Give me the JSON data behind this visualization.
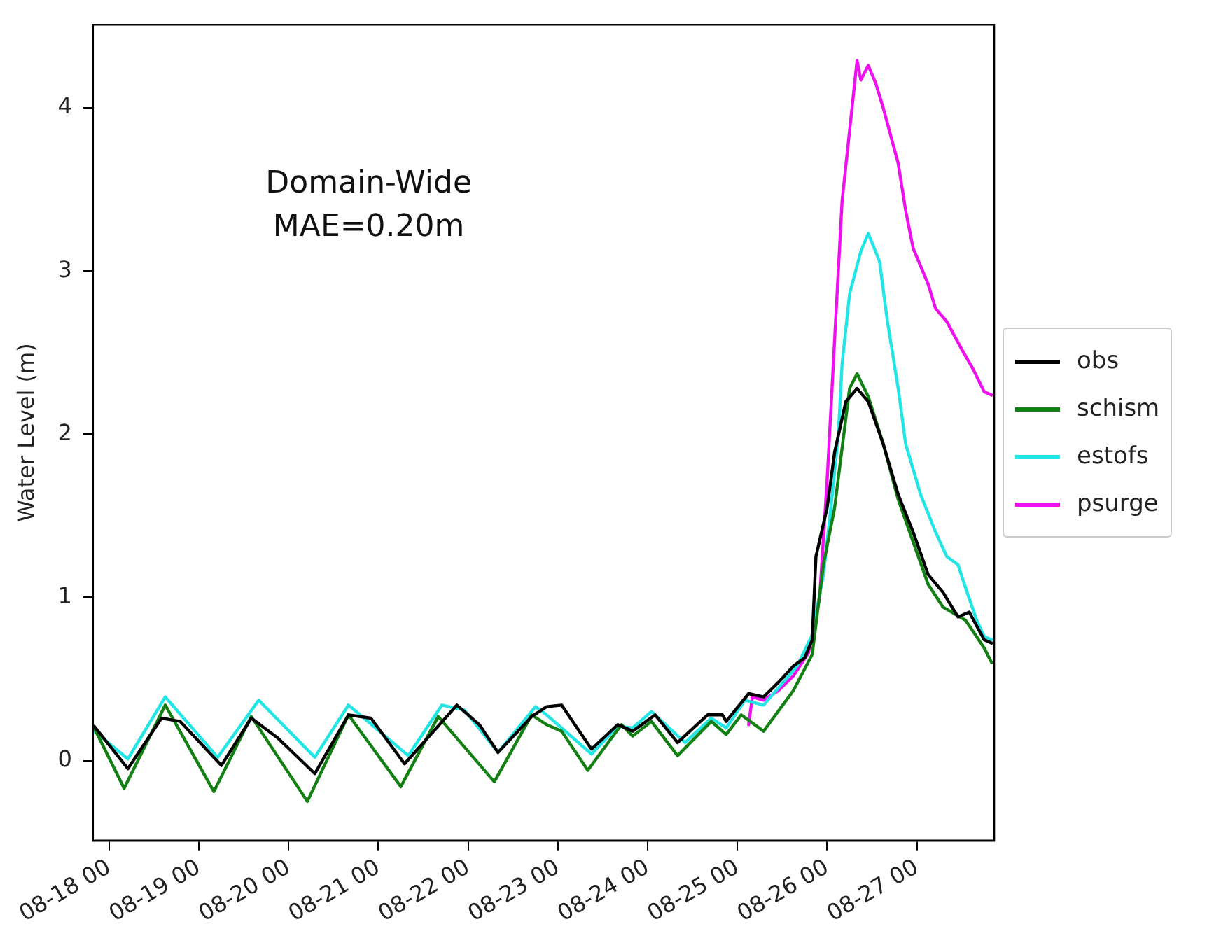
{
  "chart_data": {
    "type": "line",
    "ylabel": "Water Level (m)",
    "annotations": [
      "Domain-Wide\nMAE=0.20m"
    ],
    "xlim": [
      "--08-17T19:40",
      "--08-27T20:40"
    ],
    "xticks": [
      {
        "value": "--08-18T00:00",
        "label": "08-18 00"
      },
      {
        "value": "--08-19T00:00",
        "label": "08-19 00"
      },
      {
        "value": "--08-20T00:00",
        "label": "08-20 00"
      },
      {
        "value": "--08-21T00:00",
        "label": "08-21 00"
      },
      {
        "value": "--08-22T00:00",
        "label": "08-22 00"
      },
      {
        "value": "--08-23T00:00",
        "label": "08-23 00"
      },
      {
        "value": "--08-24T00:00",
        "label": "08-24 00"
      },
      {
        "value": "--08-25T00:00",
        "label": "08-25 00"
      },
      {
        "value": "--08-26T00:00",
        "label": "08-26 00"
      },
      {
        "value": "--08-27T00:00",
        "label": "08-27 00"
      }
    ],
    "ylim": [
      -0.49,
      4.51
    ],
    "yticks": [
      0,
      1,
      2,
      3,
      4
    ],
    "grid": false,
    "legend": "right",
    "marker": "none",
    "line_style": "solid",
    "series": [
      {
        "name": "obs",
        "color": "#000000",
        "x": [
          "--08-17T20:00",
          "--08-18T05:00",
          "--08-18T14:00",
          "--08-18T19:00",
          "--08-19T06:00",
          "--08-19T14:00",
          "--08-19T21:00",
          "--08-20T07:00",
          "--08-20T16:00",
          "--08-20T22:00",
          "--08-21T07:00",
          "--08-21T21:00",
          "--08-22T03:00",
          "--08-22T08:00",
          "--08-22T17:00",
          "--08-22T21:00",
          "--08-23T01:00",
          "--08-23T09:00",
          "--08-23T16:00",
          "--08-23T20:00",
          "--08-24T02:00",
          "--08-24T08:00",
          "--08-24T16:00",
          "--08-24T20:00",
          "--08-24T21:00",
          "--08-25T03:00",
          "--08-25T07:00",
          "--08-25T11:00",
          "--08-25T15:00",
          "--08-25T18:00",
          "--08-25T20:00",
          "--08-25T21:00",
          "--08-26T00:00",
          "--08-26T02:00",
          "--08-26T05:00",
          "--08-26T08:00",
          "--08-26T11:00",
          "--08-26T15:00",
          "--08-26T19:00",
          "--08-26T23:00",
          "--08-27T03:00",
          "--08-27T07:00",
          "--08-27T11:00",
          "--08-27T14:00",
          "--08-27T18:00",
          "--08-27T20:00"
        ],
        "values": [
          0.21,
          -0.05,
          0.26,
          0.24,
          -0.03,
          0.26,
          0.14,
          -0.08,
          0.28,
          0.26,
          -0.02,
          0.34,
          0.22,
          0.05,
          0.27,
          0.33,
          0.34,
          0.07,
          0.22,
          0.18,
          0.28,
          0.11,
          0.28,
          0.28,
          0.24,
          0.41,
          0.39,
          0.48,
          0.58,
          0.63,
          0.74,
          1.25,
          1.55,
          1.89,
          2.2,
          2.28,
          2.2,
          1.94,
          1.63,
          1.4,
          1.14,
          1.03,
          0.88,
          0.91,
          0.74,
          0.72
        ]
      },
      {
        "name": "schism",
        "color": "#138013",
        "x": [
          "--08-17T20:00",
          "--08-18T04:00",
          "--08-18T15:00",
          "--08-19T04:00",
          "--08-19T14:00",
          "--08-20T05:00",
          "--08-20T16:00",
          "--08-21T06:00",
          "--08-21T16:00",
          "--08-22T07:00",
          "--08-22T17:00",
          "--08-22T21:00",
          "--08-23T01:00",
          "--08-23T08:00",
          "--08-23T17:00",
          "--08-23T20:00",
          "--08-24T01:00",
          "--08-24T08:00",
          "--08-24T17:00",
          "--08-24T21:00",
          "--08-25T01:00",
          "--08-25T07:00",
          "--08-25T15:00",
          "--08-25T20:00",
          "--08-25T23:00",
          "--08-26T02:00",
          "--08-26T06:00",
          "--08-26T08:00",
          "--08-26T11:00",
          "--08-26T15:00",
          "--08-26T19:00",
          "--08-26T23:00",
          "--08-27T03:00",
          "--08-27T07:00",
          "--08-27T13:00",
          "--08-27T18:00",
          "--08-27T20:00"
        ],
        "values": [
          0.2,
          -0.17,
          0.34,
          -0.19,
          0.27,
          -0.25,
          0.28,
          -0.16,
          0.27,
          -0.13,
          0.28,
          0.22,
          0.18,
          -0.06,
          0.22,
          0.15,
          0.24,
          0.03,
          0.24,
          0.16,
          0.28,
          0.18,
          0.43,
          0.65,
          1.2,
          1.55,
          2.28,
          2.37,
          2.23,
          1.94,
          1.6,
          1.34,
          1.08,
          0.94,
          0.86,
          0.69,
          0.6
        ]
      },
      {
        "name": "estofs",
        "color": "#22e5e5",
        "x": [
          "--08-17T20:00",
          "--08-18T05:00",
          "--08-18T15:00",
          "--08-19T05:00",
          "--08-19T16:00",
          "--08-20T07:00",
          "--08-20T16:00",
          "--08-21T08:00",
          "--08-21T17:00",
          "--08-21T23:00",
          "--08-22T08:00",
          "--08-22T18:00",
          "--08-22T21:00",
          "--08-23T09:00",
          "--08-23T16:00",
          "--08-23T20:00",
          "--08-24T01:00",
          "--08-24T10:00",
          "--08-24T17:00",
          "--08-24T21:00",
          "--08-25T02:00",
          "--08-25T07:00",
          "--08-25T16:00",
          "--08-25T20:00",
          "--08-25T23:00",
          "--08-26T01:00",
          "--08-26T03:00",
          "--08-26T04:00",
          "--08-26T06:00",
          "--08-26T09:00",
          "--08-26T11:00",
          "--08-26T14:00",
          "--08-26T16:00",
          "--08-26T19:00",
          "--08-26T21:00",
          "--08-27T01:00",
          "--08-27T05:00",
          "--08-27T08:00",
          "--08-27T11:00",
          "--08-27T13:00",
          "--08-27T16:00",
          "--08-27T18:00",
          "--08-27T20:00"
        ],
        "values": [
          0.18,
          0.01,
          0.39,
          0.02,
          0.37,
          0.02,
          0.34,
          0.03,
          0.34,
          0.31,
          0.05,
          0.33,
          0.28,
          0.04,
          0.21,
          0.2,
          0.3,
          0.11,
          0.26,
          0.2,
          0.37,
          0.34,
          0.58,
          0.77,
          1.14,
          1.55,
          2.0,
          2.43,
          2.86,
          3.12,
          3.23,
          3.06,
          2.71,
          2.28,
          1.94,
          1.63,
          1.4,
          1.25,
          1.2,
          1.06,
          0.86,
          0.76,
          0.74
        ]
      },
      {
        "name": "psurge",
        "color": "#ee11ee",
        "x": [
          "--08-25T03:00",
          "--08-25T04:00",
          "--08-25T07:00",
          "--08-25T11:00",
          "--08-25T15:00",
          "--08-25T19:00",
          "--08-25T22:00",
          "--08-26T00:00",
          "--08-26T02:00",
          "--08-26T04:00",
          "--08-26T06:00",
          "--08-26T08:00",
          "--08-26T09:00",
          "--08-26T11:00",
          "--08-26T13:00",
          "--08-26T15:00",
          "--08-26T17:00",
          "--08-26T19:00",
          "--08-26T21:00",
          "--08-26T23:00",
          "--08-27T03:00",
          "--08-27T05:00",
          "--08-27T08:00",
          "--08-27T12:00",
          "--08-27T15:00",
          "--08-27T18:00",
          "--08-27T20:00"
        ],
        "values": [
          0.22,
          0.39,
          0.37,
          0.43,
          0.52,
          0.66,
          1.0,
          1.72,
          2.58,
          3.43,
          3.86,
          4.29,
          4.17,
          4.26,
          4.15,
          4.0,
          3.83,
          3.66,
          3.37,
          3.14,
          2.92,
          2.77,
          2.69,
          2.52,
          2.4,
          2.26,
          2.24
        ]
      }
    ]
  }
}
